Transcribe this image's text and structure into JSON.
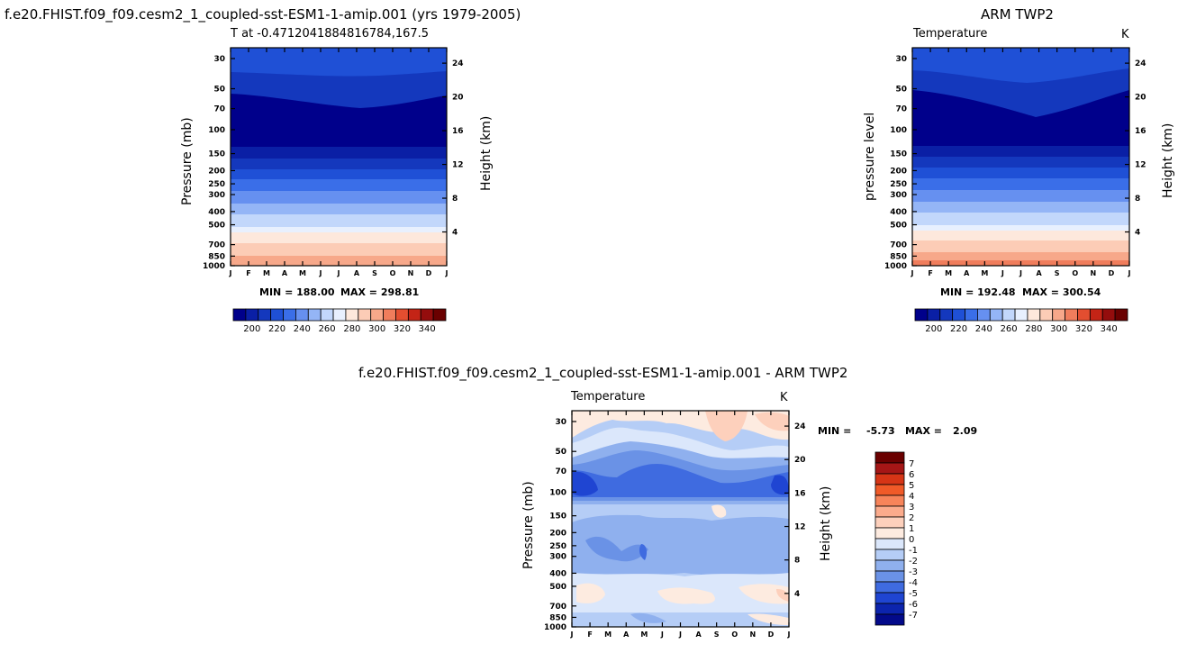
{
  "chart_data": [
    {
      "type": "contour",
      "id": "model",
      "title": "f.e20.FHIST.f09_f09.cesm2_1_coupled-sst-ESM1-1-amip.001 (yrs 1979-2005)",
      "subtitle_left": "T at -0.4712041884816784,167.5",
      "subtitle_right": "",
      "ylabel": "Pressure (mb)",
      "ylabel_right": "Height (km)",
      "min_label": "MIN = 188.00",
      "max_label": "MAX = 298.81",
      "colorbar_labels": [
        "200",
        "220",
        "240",
        "260",
        "280",
        "300",
        "320",
        "340"
      ],
      "band_values": [
        190,
        205,
        212,
        218,
        218,
        205,
        192,
        192,
        192,
        205,
        215,
        225,
        235,
        245,
        255,
        265,
        275,
        285,
        291,
        295
      ]
    },
    {
      "type": "contour",
      "id": "obs",
      "title": "ARM TWP2",
      "subtitle_left": "Temperature",
      "subtitle_right": "K",
      "ylabel": "pressure level",
      "ylabel_right": "Height (km)",
      "min_label": "MIN = 192.48",
      "max_label": "MAX = 300.54",
      "colorbar_labels": [
        "200",
        "220",
        "240",
        "260",
        "280",
        "300",
        "320",
        "340"
      ],
      "band_values": [
        195,
        207,
        213,
        218,
        212,
        198,
        194,
        194,
        194,
        205,
        215,
        225,
        235,
        245,
        255,
        265,
        275,
        285,
        292,
        297
      ]
    },
    {
      "type": "contour",
      "id": "diff",
      "title": "f.e20.FHIST.f09_f09.cesm2_1_coupled-sst-ESM1-1-amip.001 - ARM TWP2",
      "subtitle_left": "Temperature",
      "subtitle_right": "K",
      "ylabel": "Pressure (mb)",
      "ylabel_right": "Height (km)",
      "min_label": "MIN =",
      "min_value": "-5.73",
      "max_label": "MAX =",
      "max_value": "2.09",
      "colorbar_labels": [
        "7",
        "6",
        "5",
        "4",
        "3",
        "2",
        "1",
        "0",
        "-1",
        "-2",
        "-3",
        "-4",
        "-5",
        "-6",
        "-7"
      ]
    }
  ],
  "axes": {
    "pressure_ticks": [
      "30",
      "50",
      "70",
      "100",
      "150",
      "200",
      "250",
      "300",
      "400",
      "500",
      "700",
      "850",
      "1000"
    ],
    "height_ticks": [
      "24",
      "20",
      "16",
      "12",
      "8",
      "4"
    ],
    "month_ticks": [
      "J",
      "F",
      "M",
      "A",
      "M",
      "J",
      "J",
      "A",
      "S",
      "O",
      "N",
      "D",
      "J"
    ]
  },
  "colors": {
    "seq": [
      "#00008b",
      "#0a1fa5",
      "#1438bd",
      "#1f50d6",
      "#3a6ee8",
      "#6690f0",
      "#94b5f6",
      "#c2d7fb",
      "#e8f0fe",
      "#fde8dc",
      "#fcccb6",
      "#f7a88a",
      "#f07d5c",
      "#e34e30",
      "#c42416",
      "#940d0d",
      "#6a0000"
    ],
    "diff": [
      "#6a0000",
      "#a51616",
      "#d63516",
      "#f05a28",
      "#f7845a",
      "#fbab8c",
      "#fdd0bc",
      "#fdebe0",
      "#dbe7fb",
      "#b5cdf6",
      "#8fb0ee",
      "#6a92e6",
      "#3f6be0",
      "#1f45d2",
      "#0c24ad",
      "#030a8a"
    ]
  }
}
